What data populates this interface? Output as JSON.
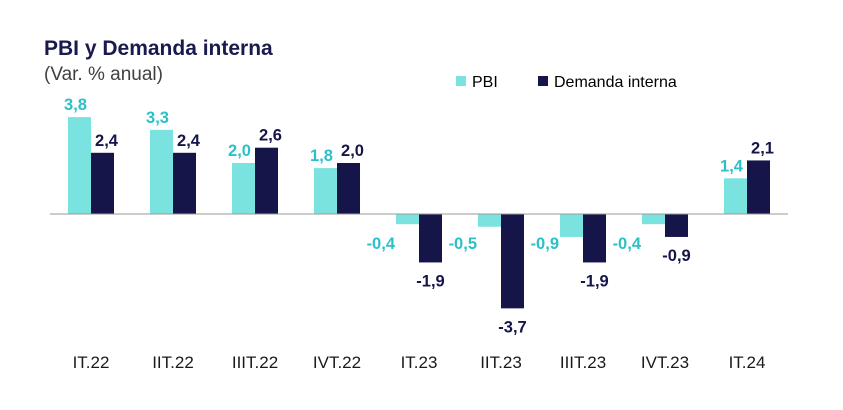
{
  "chart_data": {
    "type": "bar",
    "title": "PBI y Demanda interna",
    "subtitle": "(Var. % anual)",
    "categories": [
      "IT.22",
      "IIT.22",
      "IIIT.22",
      "IVT.22",
      "IT.23",
      "IIT.23",
      "IIIT.23",
      "IVT.23",
      "IT.24"
    ],
    "series": [
      {
        "name": "PBI",
        "color": "#7ae3e0",
        "label_color": "#2cc0c8",
        "values": [
          3.8,
          3.3,
          2.0,
          1.8,
          -0.4,
          -0.5,
          -0.9,
          -0.4,
          1.4
        ],
        "labels": [
          "3,8",
          "3,3",
          "2,0",
          "1,8",
          "-0,4",
          "-0,5",
          "-0,9",
          "-0,4",
          "1,4"
        ]
      },
      {
        "name": "Demanda interna",
        "color": "#16154a",
        "label_color": "#16154a",
        "values": [
          2.4,
          2.4,
          2.6,
          2.0,
          -1.9,
          -3.7,
          -1.9,
          -0.9,
          2.1
        ],
        "labels": [
          "2,4",
          "2,4",
          "2,6",
          "2,0",
          "-1,9",
          "-3,7",
          "-1,9",
          "-0,9",
          "2,1"
        ]
      }
    ],
    "ylim": [
      -3.7,
      3.8
    ],
    "legend_position": "top-right",
    "grid": false
  }
}
